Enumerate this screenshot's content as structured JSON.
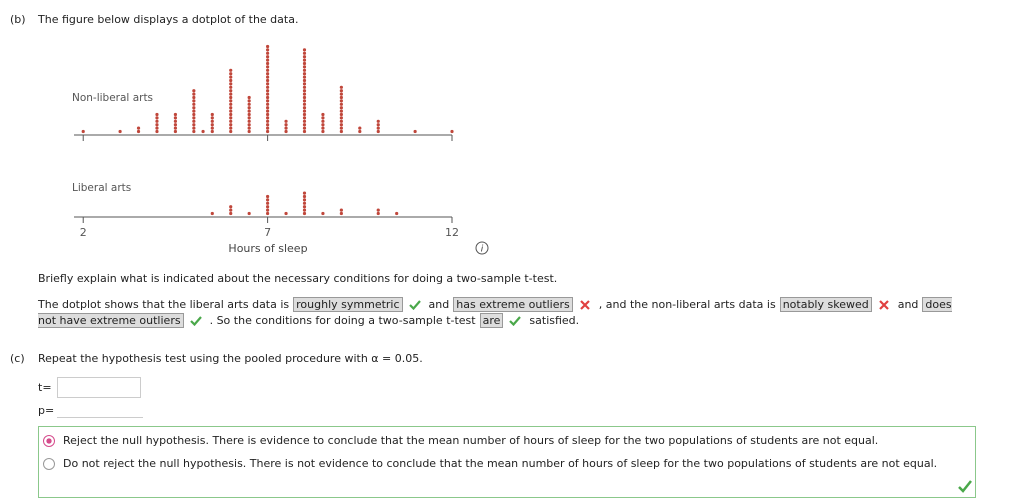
{
  "part_b": {
    "label": "(b)",
    "text": "The figure below displays a dotplot of the data.",
    "figure": {
      "type": "dotplot",
      "xlabel": "Hours of sleep",
      "xlim": [
        1.75,
        12
      ],
      "xticks": [
        2,
        7,
        12
      ],
      "color": "#c0473b",
      "series": [
        {
          "name": "Non-liberal arts",
          "x": [
            2,
            3,
            3.5,
            4,
            4.5,
            5,
            5.25,
            5.5,
            6,
            6.5,
            7,
            7.5,
            8,
            8.5,
            9,
            9.5,
            10,
            11,
            12
          ],
          "counts": [
            1,
            1,
            2,
            6,
            6,
            13,
            1,
            6,
            19,
            11,
            26,
            4,
            25,
            6,
            14,
            2,
            4,
            1,
            1
          ]
        },
        {
          "name": "Liberal arts",
          "x": [
            5.5,
            6,
            6.5,
            7,
            7.5,
            8,
            8.5,
            9,
            10,
            10.5
          ],
          "counts": [
            1,
            3,
            1,
            6,
            1,
            7,
            1,
            2,
            2,
            1
          ]
        }
      ]
    },
    "info_icon": "i",
    "question": "Briefly explain what is indicated about the necessary conditions for doing a two-sample t-test.",
    "answer": [
      "The dotplot shows that the liberal arts data is",
      "roughly symmetric",
      "and",
      "has extreme outliers",
      ", and the non-liberal arts data is",
      "notably skewed",
      "and",
      "does not have extreme outliers",
      ". So the conditions for doing a two-sample t-test",
      "are",
      "satisfied."
    ]
  },
  "part_c": {
    "label": "(c)",
    "text": "Repeat the hypothesis test using the pooled procedure with α = 0.05.",
    "t_label": "t=",
    "p_label": "p=",
    "options": [
      "Reject the null hypothesis. There is evidence to conclude that the mean number of hours of sleep for the two populations of students are not equal.",
      "Do not reject the null hypothesis. There is not evidence to conclude that the mean number of hours of sleep for the two populations of students are not equal."
    ]
  }
}
